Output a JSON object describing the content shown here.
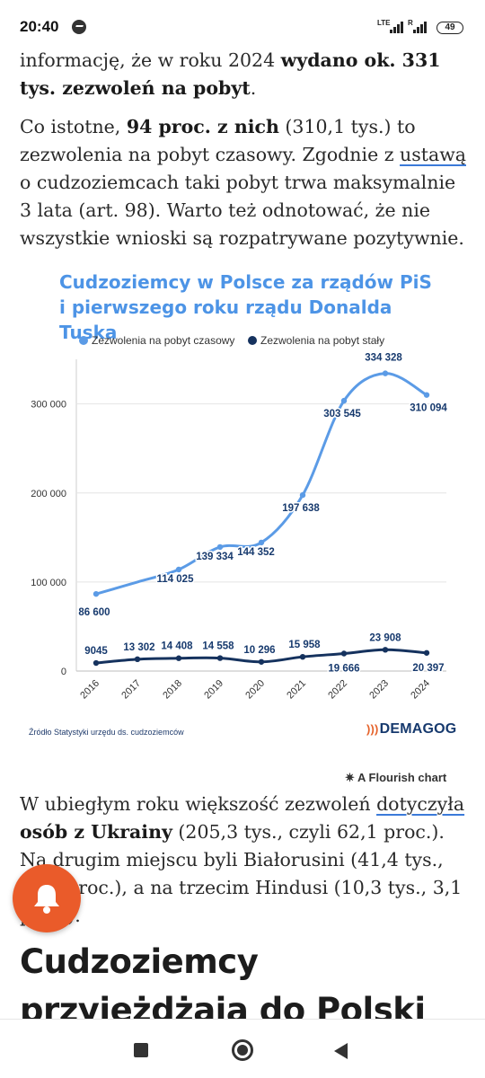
{
  "status": {
    "time": "20:40",
    "net1": "LTE",
    "net2": "R",
    "battery": "49"
  },
  "article": {
    "para1": {
      "t1": "informację, że w roku 2024 ",
      "b1": "wydano ok. 331 tys. zezwoleń na pobyt",
      "t2": "."
    },
    "para2": {
      "t1": "Co istotne, ",
      "b1": "94 proc. z nich",
      "t2": " (310,1 tys.) to zezwolenia na pobyt czasowy. Zgodnie z ",
      "link": "ustawą",
      "t3": " o cudzoziemcach taki pobyt trwa maksymalnie 3 lata (art. 98). Warto też odnotować, że nie wszystkie wnioski są rozpatrywane pozytywnie."
    },
    "para3": {
      "t1": "W ubiegłym roku większość zezwoleń ",
      "link": "dotyczyła",
      "t2": " ",
      "b1": "osób z Ukrainy",
      "t3": " (205,3 tys., czyli 62,1 proc.). Na drugim miejscu byli Białorusini (41,4 tys., 12,5 proc.), a na trzecim Hindusi (10,3 tys., 3,1 proc.)."
    },
    "heading": "Cudzoziemcy przyjeżdżają do Polski za pracą"
  },
  "chart_meta": {
    "source": "Źródło Statystyki urzędu ds. cudzoziemców",
    "brand": "DEMAGOG",
    "flourish": "A Flourish chart"
  },
  "chart_data": {
    "type": "line",
    "title": "Cudzoziemcy w Polsce za rządów PiS i pierwszego roku rządu Donalda Tuska",
    "legend_position": "top-left",
    "grid": true,
    "x": [
      "2016",
      "2017",
      "2018",
      "2019",
      "2020",
      "2021",
      "2022",
      "2023",
      "2024"
    ],
    "ylim": [
      0,
      340000
    ],
    "yticks": [
      0,
      100000,
      200000,
      300000
    ],
    "ytick_labels": [
      "0",
      "100 000",
      "200 000",
      "300 000"
    ],
    "series": [
      {
        "name": "Zezwolenia na pobyt czasowy",
        "color": "#5b9be6",
        "values": [
          86600,
          100000,
          114025,
          139334,
          144352,
          197638,
          303545,
          334328,
          310094
        ],
        "labels": [
          "86 600",
          "",
          "114 025",
          "139 334",
          "144 352",
          "197 638",
          "303 545",
          "334 328",
          "310 094"
        ]
      },
      {
        "name": "Zezwolenia na pobyt stały",
        "color": "#15325e",
        "values": [
          9045,
          13302,
          14408,
          14558,
          10296,
          15958,
          19666,
          23908,
          20397
        ],
        "labels": [
          "9045",
          "13 302",
          "14 408",
          "14 558",
          "10 296",
          "15 958",
          "19 666",
          "23 908",
          "20 397"
        ]
      }
    ]
  }
}
